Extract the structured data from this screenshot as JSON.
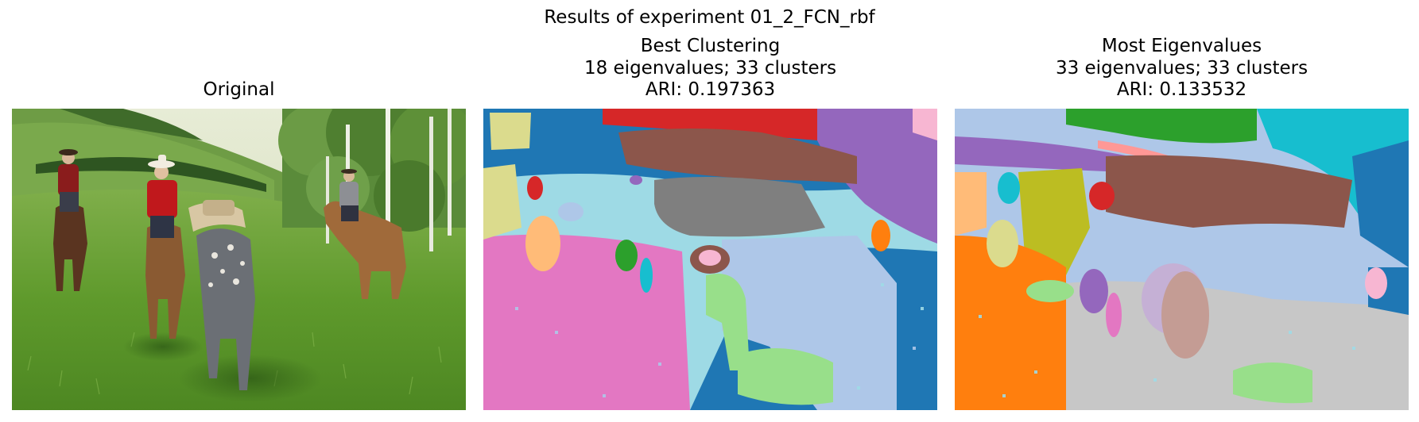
{
  "figure": {
    "suptitle": "Results of experiment 01_2_FCN_rbf"
  },
  "panels": [
    {
      "title_lines": [
        "Original"
      ],
      "image": "photo of four riders on horseback in a green meadow with hills and birch trees"
    },
    {
      "title_lines": [
        "Best Clustering",
        "18 eigenvalues; 33 clusters",
        "ARI: 0.197363"
      ],
      "image": "segmentation map with colored cluster regions"
    },
    {
      "title_lines": [
        "Most Eigenvalues",
        "33 eigenvalues; 33 clusters",
        "ARI: 0.133532"
      ],
      "image": "segmentation map with colored cluster regions"
    }
  ],
  "cluster_palette": [
    "#1f77b4",
    "#aec7e8",
    "#ff7f0e",
    "#ffbb78",
    "#2ca02c",
    "#98df8a",
    "#d62728",
    "#ff9896",
    "#9467bd",
    "#c5b0d5",
    "#8c564b",
    "#c49c94",
    "#e377c2",
    "#f7b6d2",
    "#7f7f7f",
    "#c7c7c7",
    "#bcbd22",
    "#dbdb8d",
    "#17becf",
    "#9edae5"
  ]
}
